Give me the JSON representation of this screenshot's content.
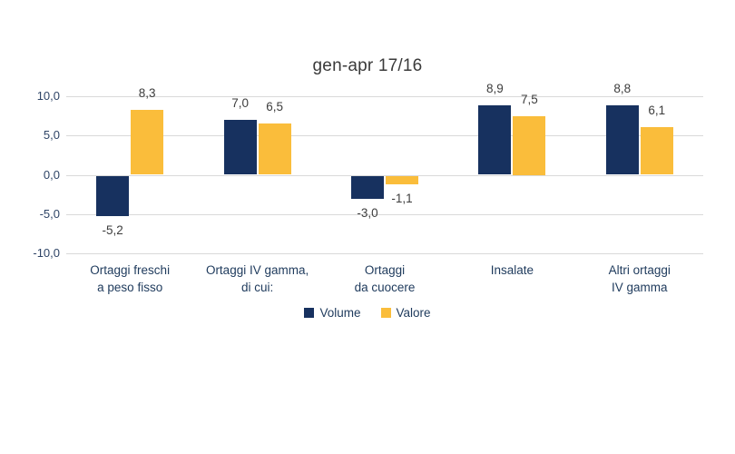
{
  "chart_data": {
    "type": "bar",
    "title": "gen-apr 17/16",
    "categories": [
      [
        "Ortaggi freschi",
        "a peso fisso"
      ],
      [
        "Ortaggi IV gamma,",
        "di cui:"
      ],
      [
        "Ortaggi",
        "da cuocere"
      ],
      [
        "Insalate"
      ],
      [
        "Altri ortaggi",
        "IV gamma"
      ]
    ],
    "series": [
      {
        "name": "Volume",
        "color": "#17315f",
        "values": [
          -5.2,
          7.0,
          -3.0,
          8.9,
          8.8
        ]
      },
      {
        "name": "Valore",
        "color": "#fabd3b",
        "values": [
          8.3,
          6.5,
          -1.1,
          7.5,
          6.1
        ]
      }
    ],
    "value_labels": [
      [
        "-5,2",
        "7,0",
        "-3,0",
        "8,9",
        "8,8"
      ],
      [
        "8,3",
        "6,5",
        "-1,1",
        "7,5",
        "6,1"
      ]
    ],
    "ytick_values": [
      10,
      5,
      0,
      -5,
      -10
    ],
    "ytick_labels": [
      "10,0",
      "5,0",
      "0,0",
      "-5,0",
      "-10,0"
    ],
    "ylim": [
      -10,
      10
    ],
    "grid": true,
    "legend_position": "bottom",
    "colors": {
      "gridline": "#d9d9d9",
      "title_text": "#3a3a3a",
      "value_text": "#3d3d3d",
      "axis_text": "#2e4466",
      "category_text": "#1e3a5c",
      "background": "#ffffff"
    }
  }
}
